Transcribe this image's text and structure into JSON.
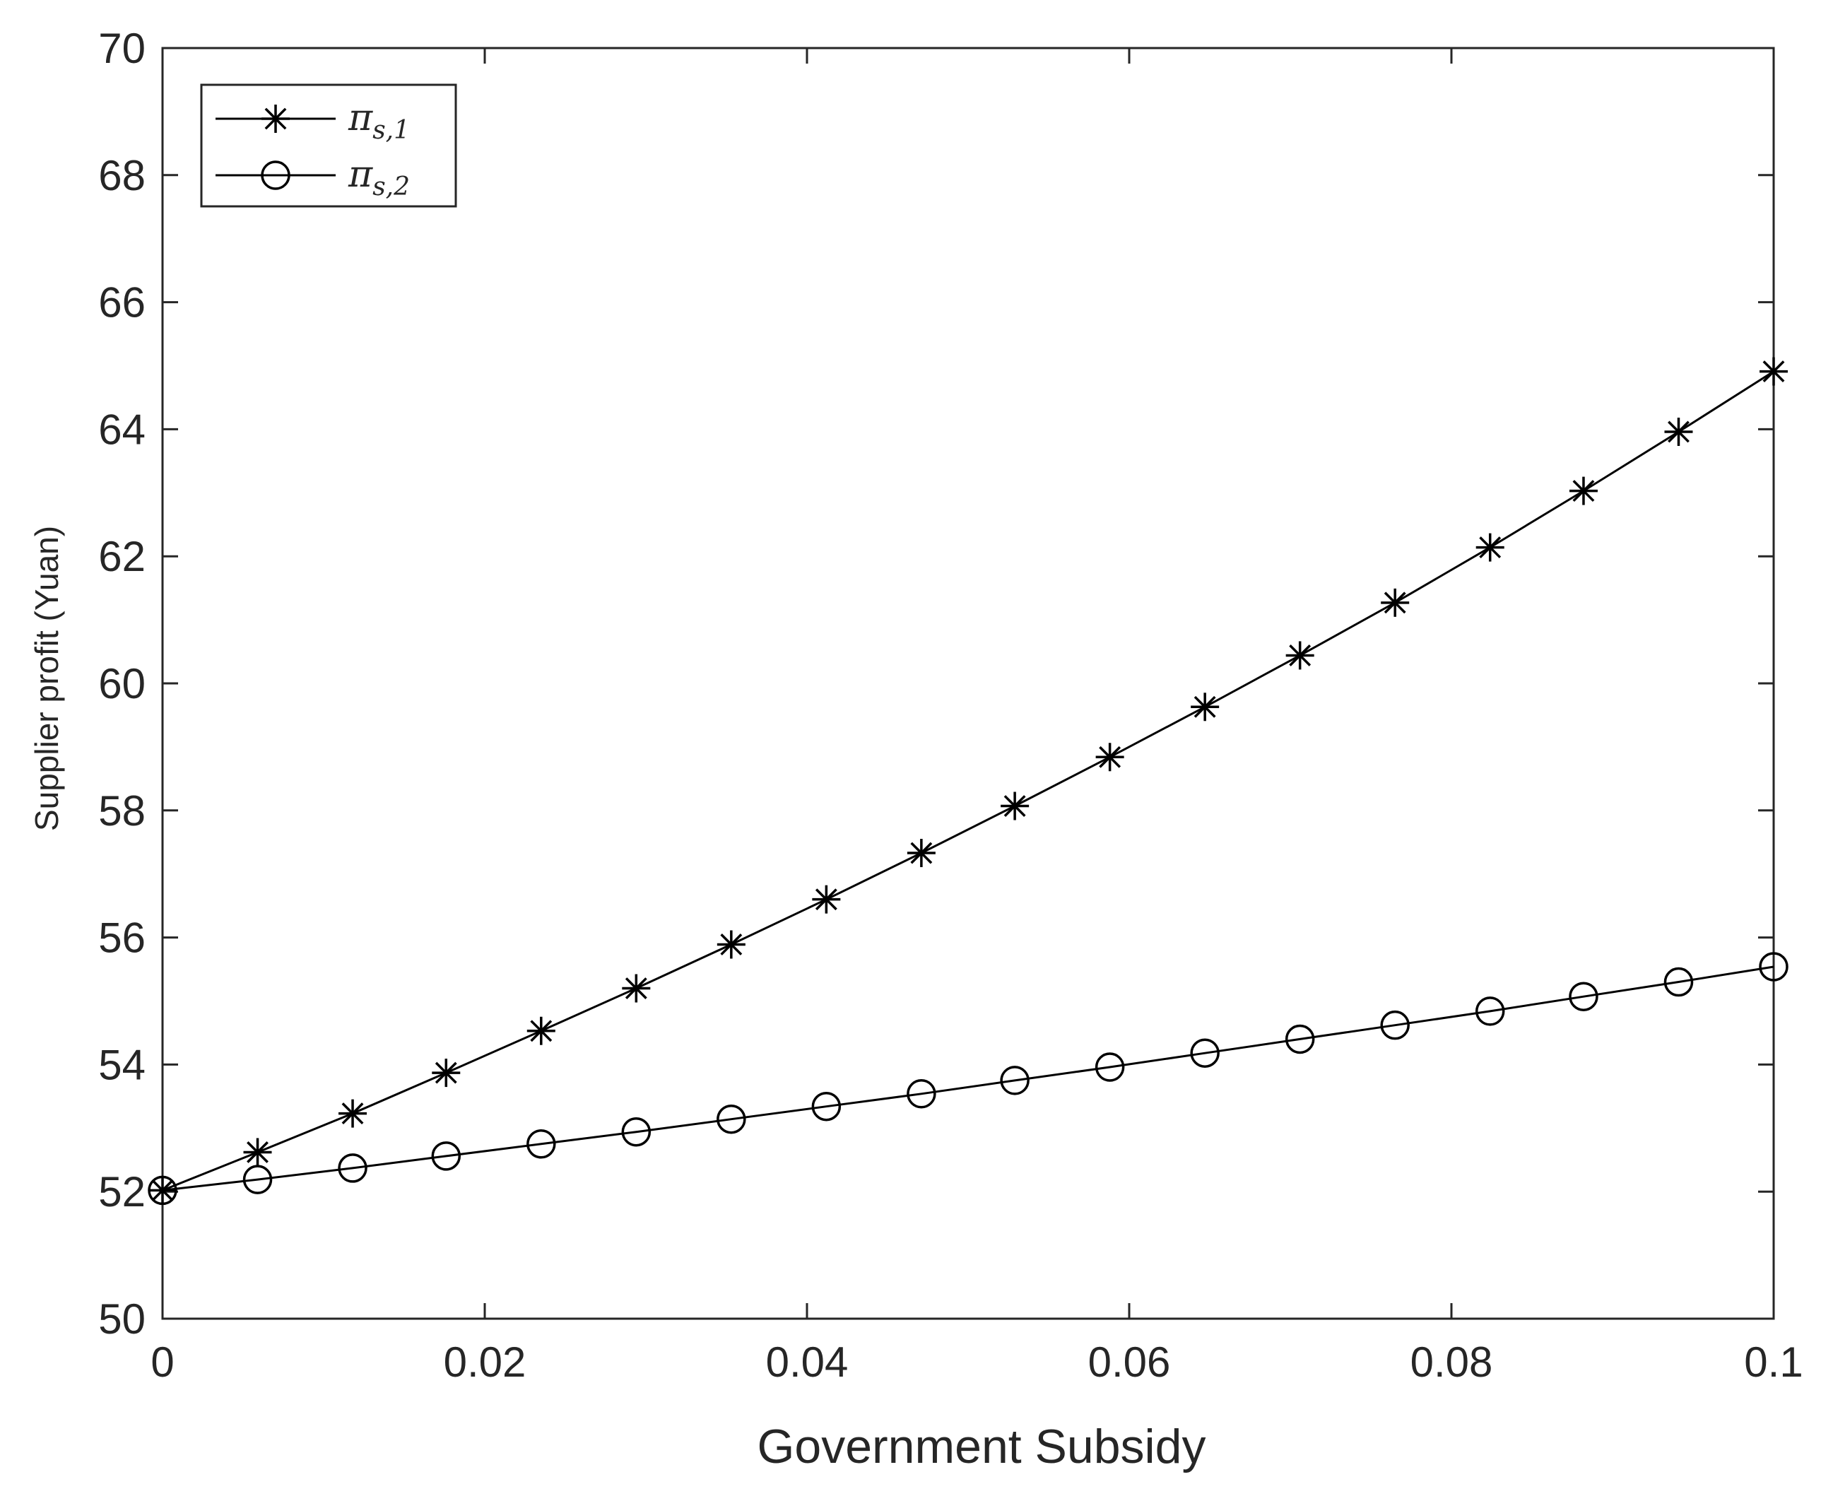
{
  "chart_data": {
    "type": "line",
    "title": "",
    "xlabel": "Government Subsidy",
    "ylabel": "Supplier profit (Yuan)",
    "xlim": [
      0,
      0.1
    ],
    "ylim": [
      50,
      70
    ],
    "x_ticks": [
      0,
      0.02,
      0.04,
      0.06,
      0.08,
      0.1
    ],
    "x_tick_labels": [
      "0",
      "0.02",
      "0.04",
      "0.06",
      "0.08",
      "0.1"
    ],
    "y_ticks": [
      50,
      52,
      54,
      56,
      58,
      60,
      62,
      64,
      66,
      68,
      70
    ],
    "y_tick_labels": [
      "50",
      "52",
      "54",
      "56",
      "58",
      "60",
      "62",
      "64",
      "66",
      "68",
      "70"
    ],
    "grid": false,
    "legend_position": "top-left",
    "x": [
      0,
      0.0059,
      0.0118,
      0.0176,
      0.0235,
      0.0294,
      0.0353,
      0.0412,
      0.0471,
      0.0529,
      0.0588,
      0.0647,
      0.0706,
      0.0765,
      0.0824,
      0.0882,
      0.0941,
      0.1
    ],
    "series": [
      {
        "name": "π_{s,1}",
        "label_main": "π",
        "label_sub": "s,1",
        "marker": "asterisk",
        "color": "#000000",
        "values": [
          52.02,
          52.62,
          53.23,
          53.87,
          54.53,
          55.2,
          55.89,
          56.6,
          57.33,
          58.07,
          58.84,
          59.63,
          60.44,
          61.27,
          62.14,
          63.03,
          63.96,
          64.91
        ]
      },
      {
        "name": "π_{s,2}",
        "label_main": "π",
        "label_sub": "s,2",
        "marker": "circle",
        "color": "#000000",
        "values": [
          52.02,
          52.19,
          52.37,
          52.56,
          52.75,
          52.94,
          53.14,
          53.34,
          53.54,
          53.75,
          53.96,
          54.18,
          54.4,
          54.62,
          54.84,
          55.07,
          55.3,
          55.54
        ]
      }
    ]
  }
}
